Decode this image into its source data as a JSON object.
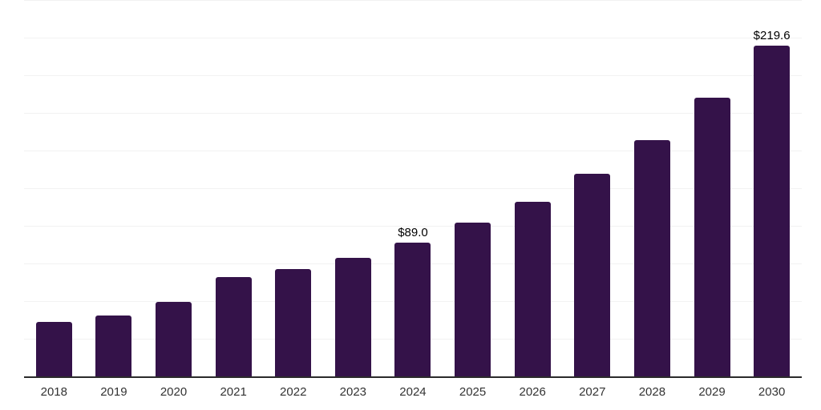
{
  "chart_data": {
    "type": "bar",
    "title": "",
    "xlabel": "",
    "ylabel": "",
    "categories": [
      "2018",
      "2019",
      "2020",
      "2021",
      "2022",
      "2023",
      "2024",
      "2025",
      "2026",
      "2027",
      "2028",
      "2029",
      "2030"
    ],
    "values": [
      36.0,
      40.5,
      49.7,
      66.2,
      71.3,
      78.8,
      89.0,
      102.0,
      116.0,
      134.5,
      157.0,
      185.0,
      219.6
    ],
    "data_labels": {
      "2024": "$89.0",
      "2030": "$219.6"
    },
    "ylim": [
      0,
      250
    ],
    "gridline_interval": 25,
    "grid": "horizontal",
    "legend_position": "none",
    "colors": {
      "bar": "#341249",
      "axis_line": "#2b2b2b",
      "gridline": "#f2f2f2",
      "value_label": "#000000",
      "tick_label": "#333333",
      "background": "#ffffff"
    }
  }
}
